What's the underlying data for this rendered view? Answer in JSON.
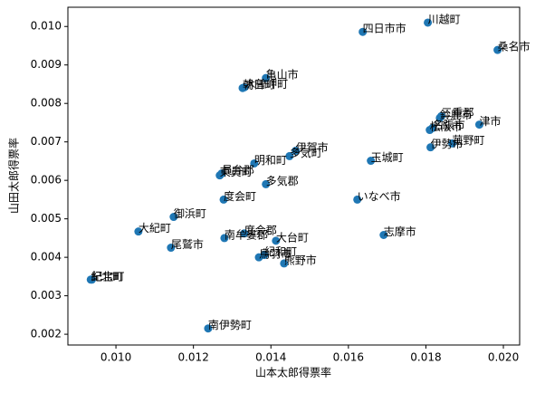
{
  "chart_data": {
    "type": "scatter",
    "xlabel": "山本太郎得票率",
    "ylabel": "山田太郎得票率",
    "color": "#1f77b4",
    "labels": [
      "川越町",
      "四日市市",
      "桑名市",
      "亀山市",
      "朝日町",
      "木曽岬町",
      "三重郡",
      "鈴鹿市",
      "津市",
      "松阪市",
      "名張市",
      "伊勢市",
      "菰野町",
      "玉城町",
      "伊賀市",
      "多気町",
      "明和町",
      "多気郡",
      "東員町",
      "員弁郡",
      "度会町",
      "いなべ市",
      "御浜町",
      "大紀町",
      "南牟婁郡",
      "度会郡",
      "大台町",
      "志摩市",
      "尾鷲市",
      "鳥羽市",
      "紀和町",
      "熊野市",
      "紀北町",
      "紀宝町",
      "南伊勢町"
    ],
    "x": [
      0.01805,
      0.01637,
      0.01985,
      0.01387,
      0.01327,
      0.01332,
      0.0184,
      0.01836,
      0.01938,
      0.0181,
      0.01817,
      0.01812,
      0.01868,
      0.01658,
      0.01464,
      0.01448,
      0.01357,
      0.01387,
      0.01268,
      0.01273,
      0.01278,
      0.01623,
      0.01149,
      0.01058,
      0.0128,
      0.01331,
      0.01413,
      0.01691,
      0.01142,
      0.01369,
      0.01383,
      0.01434,
      0.00935,
      0.00938,
      0.01238
    ],
    "y": [
      0.0101,
      0.00986,
      0.00939,
      0.00866,
      0.0084,
      0.00842,
      0.00767,
      0.00762,
      0.00745,
      0.00731,
      0.00736,
      0.00686,
      0.00696,
      0.00651,
      0.00677,
      0.00663,
      0.00644,
      0.0059,
      0.00613,
      0.00618,
      0.0055,
      0.0055,
      0.00505,
      0.00467,
      0.0045,
      0.00462,
      0.00443,
      0.00458,
      0.00425,
      0.004,
      0.00406,
      0.00384,
      0.00342,
      0.00342,
      0.00215
    ],
    "xlim": [
      0.00876,
      0.02042
    ],
    "ylim": [
      0.00172,
      0.0105
    ],
    "xticks": [
      {
        "value": 0.01,
        "label": "0.010"
      },
      {
        "value": 0.012,
        "label": "0.012"
      },
      {
        "value": 0.014,
        "label": "0.014"
      },
      {
        "value": 0.016,
        "label": "0.016"
      },
      {
        "value": 0.018,
        "label": "0.018"
      },
      {
        "value": 0.02,
        "label": "0.020"
      }
    ],
    "yticks": [
      {
        "value": 0.002,
        "label": "0.002"
      },
      {
        "value": 0.003,
        "label": "0.003"
      },
      {
        "value": 0.004,
        "label": "0.004"
      },
      {
        "value": 0.005,
        "label": "0.005"
      },
      {
        "value": 0.006,
        "label": "0.006"
      },
      {
        "value": 0.007,
        "label": "0.007"
      },
      {
        "value": 0.008,
        "label": "0.008"
      },
      {
        "value": 0.009,
        "label": "0.009"
      },
      {
        "value": 0.01,
        "label": "0.010"
      }
    ]
  }
}
